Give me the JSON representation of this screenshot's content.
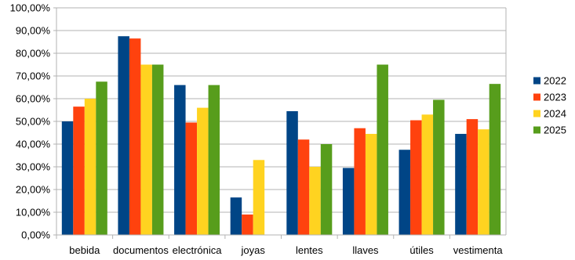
{
  "chart_data": {
    "type": "bar",
    "categories": [
      "bebida",
      "documentos",
      "electrónica",
      "joyas",
      "lentes",
      "llaves",
      "útiles",
      "vestimenta"
    ],
    "series": [
      {
        "name": "2022",
        "color": "#004586",
        "values": [
          50.0,
          87.5,
          66.0,
          16.5,
          54.5,
          29.5,
          37.5,
          44.5
        ]
      },
      {
        "name": "2023",
        "color": "#ff420e",
        "values": [
          56.5,
          86.5,
          49.5,
          9.0,
          42.0,
          47.0,
          50.5,
          51.0
        ]
      },
      {
        "name": "2024",
        "color": "#ffd320",
        "values": [
          60.0,
          75.0,
          56.0,
          33.0,
          30.0,
          44.5,
          53.0,
          46.5
        ]
      },
      {
        "name": "2025",
        "color": "#579d1c",
        "values": [
          67.5,
          75.0,
          66.0,
          0,
          40.0,
          75.0,
          59.5,
          66.5
        ]
      }
    ],
    "ylim": [
      0,
      100
    ],
    "y_step": 10,
    "y_tick_labels": [
      "0,00%",
      "10,00%",
      "20,00%",
      "30,00%",
      "40,00%",
      "50,00%",
      "60,00%",
      "70,00%",
      "80,00%",
      "90,00%",
      "100,00%"
    ],
    "grid": true,
    "legend": "right",
    "title": "",
    "xlabel": "",
    "ylabel": ""
  }
}
